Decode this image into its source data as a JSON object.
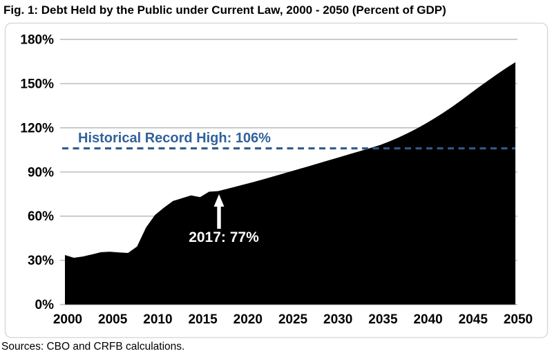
{
  "title": "Fig. 1: Debt Held by the Public under Current Law, 2000 - 2050 (Percent of GDP)",
  "source_note": "Sources: CBO and CRFB calculations.",
  "colors": {
    "area_fill": "#000000",
    "reference_line": "#2F5B87",
    "reference_label": "#30619C",
    "gridline": "#C2C2C2",
    "frame_border": "#D9D9D9",
    "annotation_text": "#FFFFFF",
    "background": "#FFFFFF"
  },
  "chart_data": {
    "type": "area",
    "title": "Fig. 1: Debt Held by the Public under Current Law, 2000 - 2050 (Percent of GDP)",
    "series_name": "Debt Held by the Public (Percent of GDP)",
    "x": [
      2000,
      2001,
      2002,
      2003,
      2004,
      2005,
      2006,
      2007,
      2008,
      2009,
      2010,
      2011,
      2012,
      2013,
      2014,
      2015,
      2016,
      2017,
      2018,
      2019,
      2020,
      2021,
      2022,
      2023,
      2024,
      2025,
      2026,
      2027,
      2028,
      2029,
      2030,
      2031,
      2032,
      2033,
      2034,
      2035,
      2036,
      2037,
      2038,
      2039,
      2040,
      2041,
      2042,
      2043,
      2044,
      2045,
      2046,
      2047,
      2048,
      2049,
      2050
    ],
    "values": [
      33.6,
      31.7,
      32.6,
      34.0,
      35.5,
      35.8,
      35.4,
      35.0,
      39.3,
      52.3,
      60.8,
      65.8,
      70.3,
      72.2,
      74.1,
      72.9,
      76.6,
      77.0,
      78.5,
      80.1,
      81.7,
      83.3,
      85.0,
      86.7,
      88.5,
      90.3,
      92.0,
      93.8,
      95.6,
      97.4,
      99.2,
      101.0,
      102.8,
      104.6,
      106.4,
      108.3,
      110.7,
      113.3,
      116.2,
      119.3,
      122.7,
      126.3,
      130.2,
      134.3,
      138.7,
      143.3,
      147.8,
      152.2,
      156.5,
      160.6,
      164.5
    ],
    "xlabel": "",
    "ylabel": "",
    "ylim": [
      0,
      180
    ],
    "ytick_values": [
      0,
      30,
      60,
      90,
      120,
      150,
      180
    ],
    "ytick_labels": [
      "0%",
      "30%",
      "60%",
      "90%",
      "120%",
      "150%",
      "180%"
    ],
    "xtick_values": [
      2000,
      2005,
      2010,
      2015,
      2020,
      2025,
      2030,
      2035,
      2040,
      2045,
      2050
    ],
    "xtick_labels": [
      "2000",
      "2005",
      "2010",
      "2015",
      "2020",
      "2025",
      "2030",
      "2035",
      "2040",
      "2045",
      "2050"
    ],
    "grid": "horizontal",
    "legend": "none",
    "annotations": {
      "reference_line": {
        "value": 106,
        "label": "Historical Record High: 106%",
        "style": "dashed"
      },
      "callout": {
        "x": 2017,
        "value": 77,
        "label": "2017: 77%",
        "arrow": "up"
      }
    }
  }
}
